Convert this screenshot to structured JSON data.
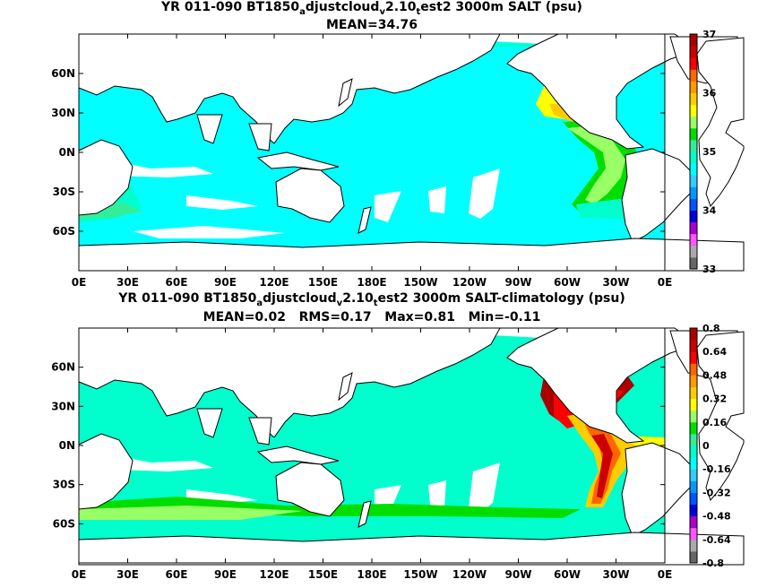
{
  "chart_data": [
    {
      "type": "heatmap",
      "title_parts": {
        "pre": "YR 011-090 BT1850",
        "s1": "a",
        "mid1": "djustcloud",
        "s2": "v",
        "mid2": "2.10",
        "s3": "t",
        "post": "est2 3000m SALT (psu)"
      },
      "subtitle": "MEAN=34.76",
      "x_ticks": [
        "0E",
        "30E",
        "60E",
        "90E",
        "120E",
        "150E",
        "180E",
        "150W",
        "120W",
        "90W",
        "60W",
        "30W",
        "0E"
      ],
      "y_ticks": [
        "60N",
        "30N",
        "0N",
        "30S",
        "60S"
      ],
      "y_tick_values": [
        60,
        30,
        0,
        -30,
        -60
      ],
      "colorbar": {
        "range": [
          33,
          37
        ],
        "ticks": [
          "33",
          "34",
          "35",
          "36",
          "37"
        ],
        "tick_values": [
          33,
          34,
          35,
          36,
          37
        ],
        "colors": [
          "#666666",
          "#aaaaaa",
          "#ff55ff",
          "#aa00cc",
          "#0000dd",
          "#0055ff",
          "#0099ff",
          "#33ccff",
          "#00ffff",
          "#00ffcc",
          "#33ee99",
          "#00dd00",
          "#99ff66",
          "#ffff00",
          "#ffcc00",
          "#ff9900",
          "#ff6600",
          "#ff0000",
          "#cc0000",
          "#aa0000"
        ]
      },
      "mean": 34.76
    },
    {
      "type": "heatmap",
      "title_parts": {
        "pre": "YR 011-090 BT1850",
        "s1": "a",
        "mid1": "djustcloud",
        "s2": "v",
        "mid2": "2.10",
        "s3": "t",
        "post": "est2 3000m SALT-climatology (psu)"
      },
      "subtitle": "MEAN=0.02   RMS=0.17   Max=0.81   Min=-0.11",
      "x_ticks": [
        "0E",
        "30E",
        "60E",
        "90E",
        "120E",
        "150E",
        "180E",
        "150W",
        "120W",
        "90W",
        "60W",
        "30W",
        "0E"
      ],
      "y_ticks": [
        "60N",
        "30N",
        "0N",
        "30S",
        "60S"
      ],
      "y_tick_values": [
        60,
        30,
        0,
        -30,
        -60
      ],
      "colorbar": {
        "range": [
          -0.8,
          0.8
        ],
        "ticks": [
          "-0.8",
          "-0.64",
          "-0.48",
          "-0.32",
          "-0.16",
          "0",
          "0.16",
          "0.32",
          "0.48",
          "0.64",
          "0.8"
        ],
        "tick_values": [
          -0.8,
          -0.64,
          -0.48,
          -0.32,
          -0.16,
          0,
          0.16,
          0.32,
          0.48,
          0.64,
          0.8
        ],
        "colors": [
          "#666666",
          "#aaaaaa",
          "#ff55ff",
          "#aa00cc",
          "#0000dd",
          "#0055ff",
          "#0099ff",
          "#33ccff",
          "#00ffff",
          "#00ffcc",
          "#33ee99",
          "#00dd00",
          "#99ff66",
          "#ffff00",
          "#ffcc00",
          "#ff9900",
          "#ff6600",
          "#ff0000",
          "#cc0000",
          "#aa0000"
        ]
      },
      "stats": {
        "mean": 0.02,
        "rms": 0.17,
        "max": 0.81,
        "min": -0.11
      }
    }
  ]
}
